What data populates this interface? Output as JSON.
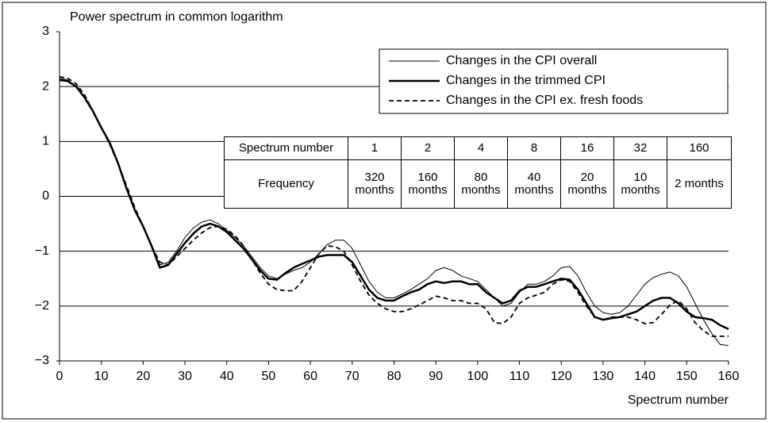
{
  "chart_data": {
    "type": "line",
    "title": "Power spectrum in common logarithm",
    "x_label": "Spectrum number",
    "x": [
      0,
      2,
      4,
      6,
      8,
      10,
      12,
      14,
      16,
      18,
      20,
      22,
      24,
      26,
      28,
      30,
      32,
      34,
      36,
      38,
      40,
      42,
      44,
      46,
      48,
      50,
      52,
      54,
      56,
      58,
      60,
      62,
      64,
      66,
      68,
      70,
      72,
      74,
      76,
      78,
      80,
      82,
      84,
      86,
      88,
      90,
      92,
      94,
      96,
      98,
      100,
      102,
      104,
      106,
      108,
      110,
      112,
      114,
      116,
      118,
      120,
      122,
      124,
      126,
      128,
      130,
      132,
      134,
      136,
      138,
      140,
      142,
      144,
      146,
      148,
      150,
      152,
      154,
      156,
      158,
      160
    ],
    "series": [
      {
        "name": "Changes in the CPI overall",
        "color": "#000000",
        "width": 1,
        "dash": false,
        "values": [
          2.15,
          2.12,
          2.0,
          1.8,
          1.55,
          1.25,
          0.95,
          0.6,
          0.15,
          -0.25,
          -0.55,
          -0.9,
          -1.25,
          -1.2,
          -1.0,
          -0.75,
          -0.58,
          -0.47,
          -0.43,
          -0.5,
          -0.62,
          -0.75,
          -0.9,
          -1.1,
          -1.3,
          -1.45,
          -1.5,
          -1.42,
          -1.35,
          -1.3,
          -1.2,
          -1.05,
          -0.88,
          -0.8,
          -0.8,
          -0.95,
          -1.25,
          -1.55,
          -1.75,
          -1.85,
          -1.85,
          -1.78,
          -1.7,
          -1.6,
          -1.5,
          -1.35,
          -1.3,
          -1.35,
          -1.45,
          -1.5,
          -1.55,
          -1.7,
          -1.85,
          -2.0,
          -1.95,
          -1.75,
          -1.6,
          -1.6,
          -1.55,
          -1.45,
          -1.3,
          -1.28,
          -1.45,
          -1.75,
          -2.0,
          -2.12,
          -2.15,
          -2.12,
          -2.0,
          -1.8,
          -1.6,
          -1.48,
          -1.42,
          -1.38,
          -1.45,
          -1.65,
          -1.95,
          -2.25,
          -2.5,
          -2.7,
          -2.72
        ]
      },
      {
        "name": "Changes in the trimmed CPI",
        "color": "#000000",
        "width": 2.5,
        "dash": false,
        "values": [
          2.12,
          2.1,
          2.0,
          1.8,
          1.55,
          1.25,
          0.98,
          0.6,
          0.15,
          -0.25,
          -0.55,
          -0.9,
          -1.3,
          -1.25,
          -1.05,
          -0.85,
          -0.68,
          -0.55,
          -0.5,
          -0.55,
          -0.65,
          -0.8,
          -0.95,
          -1.15,
          -1.35,
          -1.5,
          -1.52,
          -1.4,
          -1.3,
          -1.23,
          -1.17,
          -1.1,
          -1.07,
          -1.07,
          -1.07,
          -1.2,
          -1.45,
          -1.7,
          -1.85,
          -1.9,
          -1.9,
          -1.82,
          -1.75,
          -1.7,
          -1.6,
          -1.55,
          -1.58,
          -1.55,
          -1.55,
          -1.6,
          -1.6,
          -1.75,
          -1.85,
          -1.95,
          -1.9,
          -1.72,
          -1.65,
          -1.65,
          -1.6,
          -1.55,
          -1.5,
          -1.52,
          -1.7,
          -1.95,
          -2.2,
          -2.25,
          -2.22,
          -2.2,
          -2.15,
          -2.1,
          -2.0,
          -1.9,
          -1.85,
          -1.85,
          -1.95,
          -2.1,
          -2.2,
          -2.22,
          -2.25,
          -2.35,
          -2.42
        ]
      },
      {
        "name": "Changes in the CPI ex. fresh foods",
        "color": "#000000",
        "width": 1.8,
        "dash": true,
        "values": [
          2.18,
          2.15,
          2.05,
          1.85,
          1.55,
          1.25,
          0.95,
          0.6,
          0.2,
          -0.2,
          -0.55,
          -0.9,
          -1.2,
          -1.25,
          -1.1,
          -0.95,
          -0.8,
          -0.67,
          -0.57,
          -0.55,
          -0.6,
          -0.72,
          -0.9,
          -1.15,
          -1.4,
          -1.6,
          -1.7,
          -1.72,
          -1.72,
          -1.55,
          -1.3,
          -1.05,
          -0.9,
          -0.92,
          -1.0,
          -1.25,
          -1.55,
          -1.8,
          -1.95,
          -2.05,
          -2.1,
          -2.1,
          -2.05,
          -1.98,
          -1.9,
          -1.82,
          -1.85,
          -1.9,
          -1.9,
          -1.95,
          -1.95,
          -2.05,
          -2.3,
          -2.32,
          -2.2,
          -1.95,
          -1.85,
          -1.8,
          -1.75,
          -1.6,
          -1.52,
          -1.55,
          -1.75,
          -2.0,
          -2.2,
          -2.25,
          -2.2,
          -2.2,
          -2.2,
          -2.25,
          -2.32,
          -2.3,
          -2.15,
          -1.98,
          -1.9,
          -2.05,
          -2.3,
          -2.45,
          -2.55,
          -2.55,
          -2.55
        ]
      }
    ],
    "xlim": [
      0,
      160
    ],
    "xticks": [
      0,
      10,
      20,
      30,
      40,
      50,
      60,
      70,
      80,
      90,
      100,
      110,
      120,
      130,
      140,
      150,
      160
    ],
    "ylim": [
      -3,
      3
    ],
    "yticks": [
      {
        "value": -3,
        "label": "−3"
      },
      {
        "value": -2,
        "label": "−2"
      },
      {
        "value": -1,
        "label": "−1"
      },
      0,
      1,
      2,
      3
    ],
    "grid": true,
    "legend": "upper right",
    "table": {
      "rows": [
        [
          "Spectrum number",
          "1",
          "2",
          "4",
          "8",
          "16",
          "32",
          "160"
        ],
        [
          "Frequency",
          "320 months",
          "160 months",
          "80 months",
          "40 months",
          "20 months",
          "10 months",
          "2 months"
        ]
      ]
    }
  }
}
